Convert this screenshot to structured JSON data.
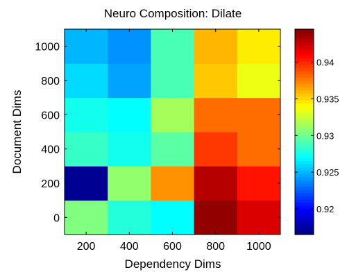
{
  "chart_data": {
    "type": "heatmap",
    "title": "Neuro Composition: Dilate",
    "xlabel": "Dependency Dims",
    "ylabel": "Document Dims",
    "x_categories": [
      "200",
      "400",
      "600",
      "800",
      "1000"
    ],
    "y_categories": [
      "0",
      "200",
      "400",
      "600",
      "800",
      "1000"
    ],
    "values": [
      [
        0.9305,
        0.928,
        0.927,
        0.944,
        0.942
      ],
      [
        0.917,
        0.931,
        0.937,
        0.943,
        0.9405
      ],
      [
        0.9285,
        0.9275,
        0.9295,
        0.9395,
        0.938
      ],
      [
        0.9275,
        0.927,
        0.9315,
        0.938,
        0.938
      ],
      [
        0.926,
        0.9245,
        0.929,
        0.9355,
        0.9335
      ],
      [
        0.925,
        0.924,
        0.929,
        0.936,
        0.9345
      ]
    ],
    "colorbar": {
      "min": 0.9165,
      "max": 0.9445,
      "ticks": [
        0.92,
        0.925,
        0.93,
        0.935,
        0.94
      ],
      "tick_labels": [
        "0.92",
        "0.925",
        "0.93",
        "0.935",
        "0.94"
      ],
      "colormap": "jet"
    }
  }
}
